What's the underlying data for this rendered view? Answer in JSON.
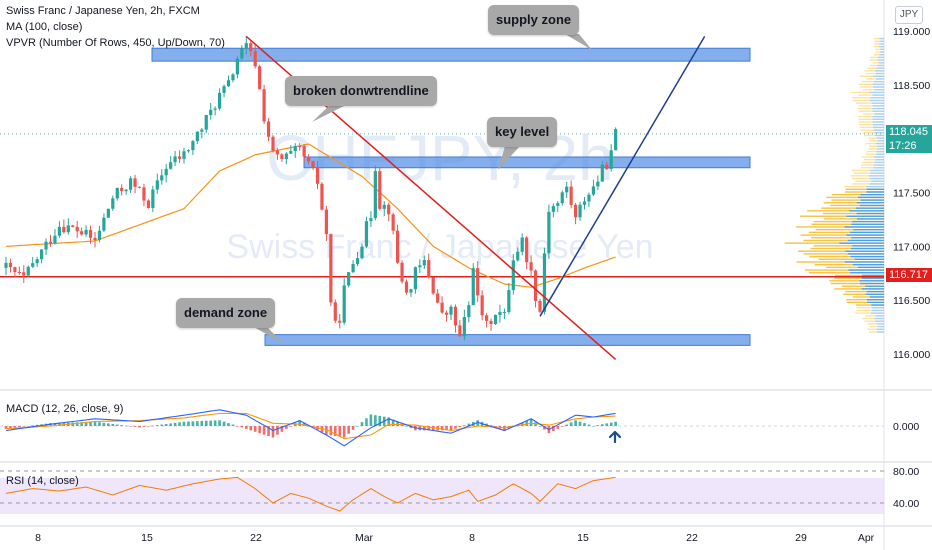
{
  "legend": {
    "line1": "Swiss Franc / Japanese Yen, 2h, FXCM",
    "line2": "MA (100, close)",
    "line3": "VPVR (Number Of Rows, 450, Up/Down, 70)"
  },
  "watermark": {
    "symbol": "CHFJPY, 2h",
    "name": "Swiss Franc / Japanese Yen"
  },
  "currency_badge": "JPY",
  "annotations": {
    "supply": "supply zone",
    "trend": "broken donwtrendline",
    "key": "key level",
    "demand": "demand zone"
  },
  "price_tags": {
    "last": "118.045",
    "countdown": "17:26",
    "support": "116.717"
  },
  "macd_label": "MACD (12, 26, close, 9)",
  "rsi_label": "RSI (14, close)",
  "colors": {
    "up": "#26a69a",
    "down": "#ef5350",
    "zone": "#5b93e6",
    "trend": "#e0201c",
    "ma": "#f7931a",
    "support": "#e0201c",
    "rsi": "#f57c00",
    "arrow": "#1e4e8c"
  },
  "chart_data": [
    {
      "type": "candlestick",
      "title": "Swiss Franc / Japanese Yen, 2h, FXCM",
      "y_ticks": [
        "119.000",
        "118.500",
        "118.000",
        "117.500",
        "117.000",
        "116.500",
        "116.000"
      ],
      "x_ticks": [
        "8",
        "15",
        "22",
        "Mar",
        "8",
        "15",
        "22",
        "29",
        "Apr"
      ],
      "ylim": [
        115.85,
        119.25
      ],
      "close_path": [
        [
          0,
          116.8
        ],
        [
          4,
          116.7
        ],
        [
          8,
          116.95
        ],
        [
          12,
          117.2
        ],
        [
          16,
          117.15
        ],
        [
          20,
          117.05
        ],
        [
          24,
          117.45
        ],
        [
          28,
          117.6
        ],
        [
          32,
          117.4
        ],
        [
          36,
          117.75
        ],
        [
          40,
          117.85
        ],
        [
          44,
          118.1
        ],
        [
          48,
          118.4
        ],
        [
          50,
          118.5
        ],
        [
          52,
          118.75
        ],
        [
          54,
          118.85
        ],
        [
          56,
          118.7
        ],
        [
          58,
          118.2
        ],
        [
          60,
          117.85
        ],
        [
          62,
          117.8
        ],
        [
          64,
          117.85
        ],
        [
          66,
          117.9
        ],
        [
          68,
          117.75
        ],
        [
          70,
          117.6
        ],
        [
          72,
          117.1
        ],
        [
          73,
          116.5
        ],
        [
          74,
          116.25
        ],
        [
          75,
          116.35
        ],
        [
          76,
          116.6
        ],
        [
          78,
          116.85
        ],
        [
          80,
          117.05
        ],
        [
          82,
          117.3
        ],
        [
          83,
          117.75
        ],
        [
          84,
          117.4
        ],
        [
          86,
          117.35
        ],
        [
          88,
          116.85
        ],
        [
          90,
          116.55
        ],
        [
          92,
          116.75
        ],
        [
          94,
          116.85
        ],
        [
          96,
          116.6
        ],
        [
          98,
          116.35
        ],
        [
          100,
          116.4
        ],
        [
          102,
          116.15
        ],
        [
          104,
          116.45
        ],
        [
          105,
          116.85
        ],
        [
          106,
          116.5
        ],
        [
          108,
          116.25
        ],
        [
          110,
          116.4
        ],
        [
          112,
          116.35
        ],
        [
          114,
          116.9
        ],
        [
          116,
          117.05
        ],
        [
          118,
          116.75
        ],
        [
          119,
          116.55
        ],
        [
          120,
          116.4
        ],
        [
          121,
          116.95
        ],
        [
          122,
          117.35
        ],
        [
          124,
          117.4
        ],
        [
          126,
          117.55
        ],
        [
          128,
          117.25
        ],
        [
          130,
          117.45
        ],
        [
          132,
          117.55
        ],
        [
          134,
          117.7
        ],
        [
          136,
          117.85
        ],
        [
          137,
          118.045
        ]
      ],
      "series": [
        {
          "name": "MA (100, close)",
          "values": [
            [
              0,
              117.0
            ],
            [
              20,
              117.05
            ],
            [
              40,
              117.35
            ],
            [
              48,
              117.7
            ],
            [
              56,
              117.85
            ],
            [
              62,
              117.9
            ],
            [
              68,
              117.95
            ],
            [
              72,
              117.85
            ],
            [
              80,
              117.65
            ],
            [
              88,
              117.35
            ],
            [
              96,
              117.0
            ],
            [
              104,
              116.8
            ],
            [
              112,
              116.65
            ],
            [
              118,
              116.62
            ],
            [
              124,
              116.7
            ],
            [
              130,
              116.8
            ],
            [
              137,
              116.9
            ]
          ]
        }
      ],
      "zones": [
        {
          "name": "supply zone",
          "from": 118.72,
          "to": 118.84
        },
        {
          "name": "key level",
          "from": 117.73,
          "to": 117.83
        },
        {
          "name": "demand zone",
          "from": 116.08,
          "to": 116.18
        }
      ],
      "support_line": 116.717,
      "trendlines": [
        {
          "name": "broken donwtrendline",
          "from": [
            54,
            118.95
          ],
          "to": [
            137,
            115.95
          ]
        },
        {
          "name": "uptrend",
          "from": [
            120,
            116.35
          ],
          "to": [
            157,
            118.95
          ]
        }
      ]
    },
    {
      "type": "line",
      "title": "MACD (12, 26, close, 9)",
      "y_ticks": [
        "0.000"
      ],
      "ylim": [
        -0.35,
        0.35
      ],
      "series": [
        {
          "name": "MACD",
          "values": [
            [
              0,
              -0.05
            ],
            [
              10,
              0.02
            ],
            [
              20,
              0.08
            ],
            [
              30,
              0.05
            ],
            [
              40,
              0.12
            ],
            [
              48,
              0.18
            ],
            [
              54,
              0.12
            ],
            [
              60,
              -0.05
            ],
            [
              66,
              0.06
            ],
            [
              72,
              -0.1
            ],
            [
              76,
              -0.22
            ],
            [
              82,
              -0.02
            ],
            [
              86,
              0.08
            ],
            [
              92,
              -0.02
            ],
            [
              100,
              -0.08
            ],
            [
              106,
              0.04
            ],
            [
              112,
              -0.05
            ],
            [
              118,
              0.08
            ],
            [
              122,
              -0.04
            ],
            [
              128,
              0.12
            ],
            [
              132,
              0.1
            ],
            [
              137,
              0.14
            ]
          ]
        },
        {
          "name": "Signal",
          "values": [
            [
              0,
              -0.03
            ],
            [
              10,
              0.0
            ],
            [
              20,
              0.05
            ],
            [
              30,
              0.06
            ],
            [
              40,
              0.09
            ],
            [
              48,
              0.14
            ],
            [
              54,
              0.14
            ],
            [
              60,
              0.03
            ],
            [
              66,
              0.02
            ],
            [
              72,
              -0.04
            ],
            [
              76,
              -0.14
            ],
            [
              82,
              -0.1
            ],
            [
              86,
              0.02
            ],
            [
              92,
              0.01
            ],
            [
              100,
              -0.05
            ],
            [
              106,
              0.0
            ],
            [
              112,
              -0.02
            ],
            [
              118,
              0.03
            ],
            [
              122,
              0.01
            ],
            [
              128,
              0.08
            ],
            [
              132,
              0.1
            ],
            [
              137,
              0.11
            ]
          ]
        }
      ]
    },
    {
      "type": "line",
      "title": "RSI (14, close)",
      "y_ticks": [
        "80.00",
        "40.00"
      ],
      "ylim": [
        25,
        85
      ],
      "series": [
        {
          "name": "RSI",
          "values": [
            [
              0,
              52
            ],
            [
              6,
              58
            ],
            [
              12,
              55
            ],
            [
              18,
              60
            ],
            [
              24,
              50
            ],
            [
              30,
              62
            ],
            [
              36,
              56
            ],
            [
              42,
              64
            ],
            [
              48,
              70
            ],
            [
              52,
              72
            ],
            [
              56,
              58
            ],
            [
              60,
              40
            ],
            [
              64,
              52
            ],
            [
              68,
              46
            ],
            [
              72,
              36
            ],
            [
              75,
              30
            ],
            [
              78,
              44
            ],
            [
              82,
              58
            ],
            [
              85,
              48
            ],
            [
              88,
              40
            ],
            [
              92,
              52
            ],
            [
              96,
              44
            ],
            [
              100,
              48
            ],
            [
              104,
              56
            ],
            [
              106,
              42
            ],
            [
              110,
              50
            ],
            [
              114,
              64
            ],
            [
              118,
              52
            ],
            [
              120,
              42
            ],
            [
              124,
              64
            ],
            [
              128,
              58
            ],
            [
              132,
              68
            ],
            [
              137,
              72
            ]
          ]
        }
      ]
    }
  ]
}
